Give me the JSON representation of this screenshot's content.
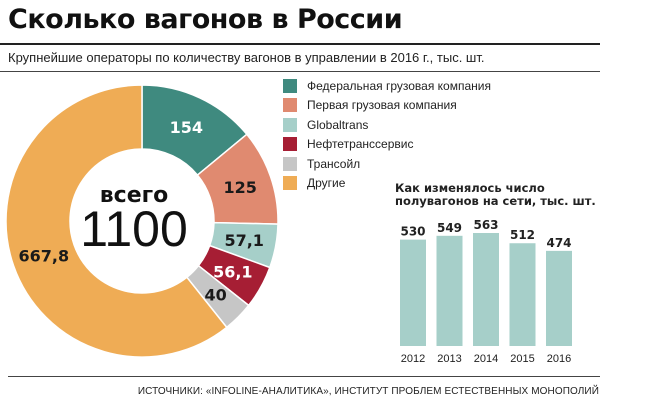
{
  "title": "Сколько вагонов в России",
  "subtitle": "Крупнейшие операторы по количеству вагонов в управлении в 2016 г., тыс. шт.",
  "donut_center": {
    "label": "всего",
    "value": "1100"
  },
  "sources": "ИСТОЧНИКИ: «INFOLINE-АНАЛИТИКА», ИНСТИТУТ ПРОБЛЕМ ЕСТЕСТВЕННЫХ МОНОПОЛИЙ",
  "chart_data": [
    {
      "type": "pie",
      "total": 1100,
      "categories": [
        "Федеральная грузовая компания",
        "Первая грузовая компания",
        "Globaltrans",
        "Нефтетранссервис",
        "Трансойл",
        "Другие"
      ],
      "values": [
        154,
        125,
        57.1,
        56.1,
        40,
        667.8
      ],
      "labels": [
        "154",
        "125",
        "57,1",
        "56,1",
        "40",
        "667,8"
      ],
      "colors": [
        "#3f8a7f",
        "#e08a70",
        "#a6cfc9",
        "#a61e34",
        "#c6c6c6",
        "#efac55"
      ],
      "label_colors": [
        "#ffffff",
        "#1a1a1a",
        "#1a1a1a",
        "#ffffff",
        "#1a1a1a",
        "#1a1a1a"
      ]
    },
    {
      "type": "bar",
      "title": "Как изменялось число полувагонов на сети, тыс. шт.",
      "categories": [
        "2012",
        "2013",
        "2014",
        "2015",
        "2016"
      ],
      "values": [
        530,
        549,
        563,
        512,
        474
      ],
      "color": "#a6cfc9",
      "ylim": [
        0,
        563
      ]
    }
  ]
}
